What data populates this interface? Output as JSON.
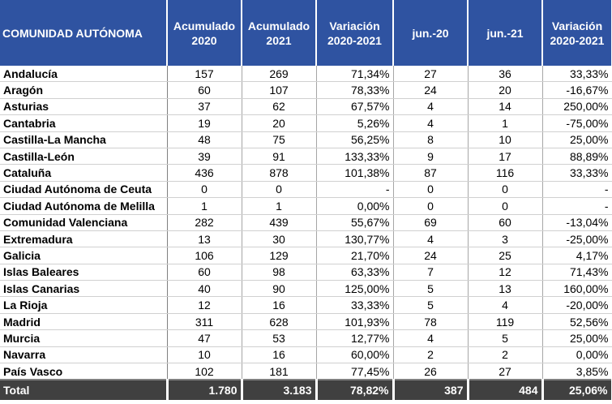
{
  "table": {
    "headers": [
      "COMUNIDAD AUTÓNOMA",
      "Acumulado 2020",
      "Acumulado 2021",
      "Variación 2020-2021",
      "jun.-20",
      "jun.-21",
      "Variación 2020-2021"
    ],
    "rows": [
      [
        "Andalucía",
        "157",
        "269",
        "71,34%",
        "27",
        "36",
        "33,33%"
      ],
      [
        "Aragón",
        "60",
        "107",
        "78,33%",
        "24",
        "20",
        "-16,67%"
      ],
      [
        "Asturias",
        "37",
        "62",
        "67,57%",
        "4",
        "14",
        "250,00%"
      ],
      [
        "Cantabria",
        "19",
        "20",
        "5,26%",
        "4",
        "1",
        "-75,00%"
      ],
      [
        "Castilla-La Mancha",
        "48",
        "75",
        "56,25%",
        "8",
        "10",
        "25,00%"
      ],
      [
        "Castilla-León",
        "39",
        "91",
        "133,33%",
        "9",
        "17",
        "88,89%"
      ],
      [
        "Cataluña",
        "436",
        "878",
        "101,38%",
        "87",
        "116",
        "33,33%"
      ],
      [
        "Ciudad Autónoma de Ceuta",
        "0",
        "0",
        "-",
        "0",
        "0",
        "-"
      ],
      [
        "Ciudad Autónoma de Melilla",
        "1",
        "1",
        "0,00%",
        "0",
        "0",
        "-"
      ],
      [
        "Comunidad Valenciana",
        "282",
        "439",
        "55,67%",
        "69",
        "60",
        "-13,04%"
      ],
      [
        "Extremadura",
        "13",
        "30",
        "130,77%",
        "4",
        "3",
        "-25,00%"
      ],
      [
        "Galicia",
        "106",
        "129",
        "21,70%",
        "24",
        "25",
        "4,17%"
      ],
      [
        "Islas Baleares",
        "60",
        "98",
        "63,33%",
        "7",
        "12",
        "71,43%"
      ],
      [
        "Islas Canarias",
        "40",
        "90",
        "125,00%",
        "5",
        "13",
        "160,00%"
      ],
      [
        "La Rioja",
        "12",
        "16",
        "33,33%",
        "5",
        "4",
        "-20,00%"
      ],
      [
        "Madrid",
        "311",
        "628",
        "101,93%",
        "78",
        "119",
        "52,56%"
      ],
      [
        "Murcia",
        "47",
        "53",
        "12,77%",
        "4",
        "5",
        "25,00%"
      ],
      [
        "Navarra",
        "10",
        "16",
        "60,00%",
        "2",
        "2",
        "0,00%"
      ],
      [
        "País Vasco",
        "102",
        "181",
        "77,45%",
        "26",
        "27",
        "3,85%"
      ]
    ],
    "total": [
      "Total",
      "1.780",
      "3.183",
      "78,82%",
      "387",
      "484",
      "25,06%"
    ]
  }
}
